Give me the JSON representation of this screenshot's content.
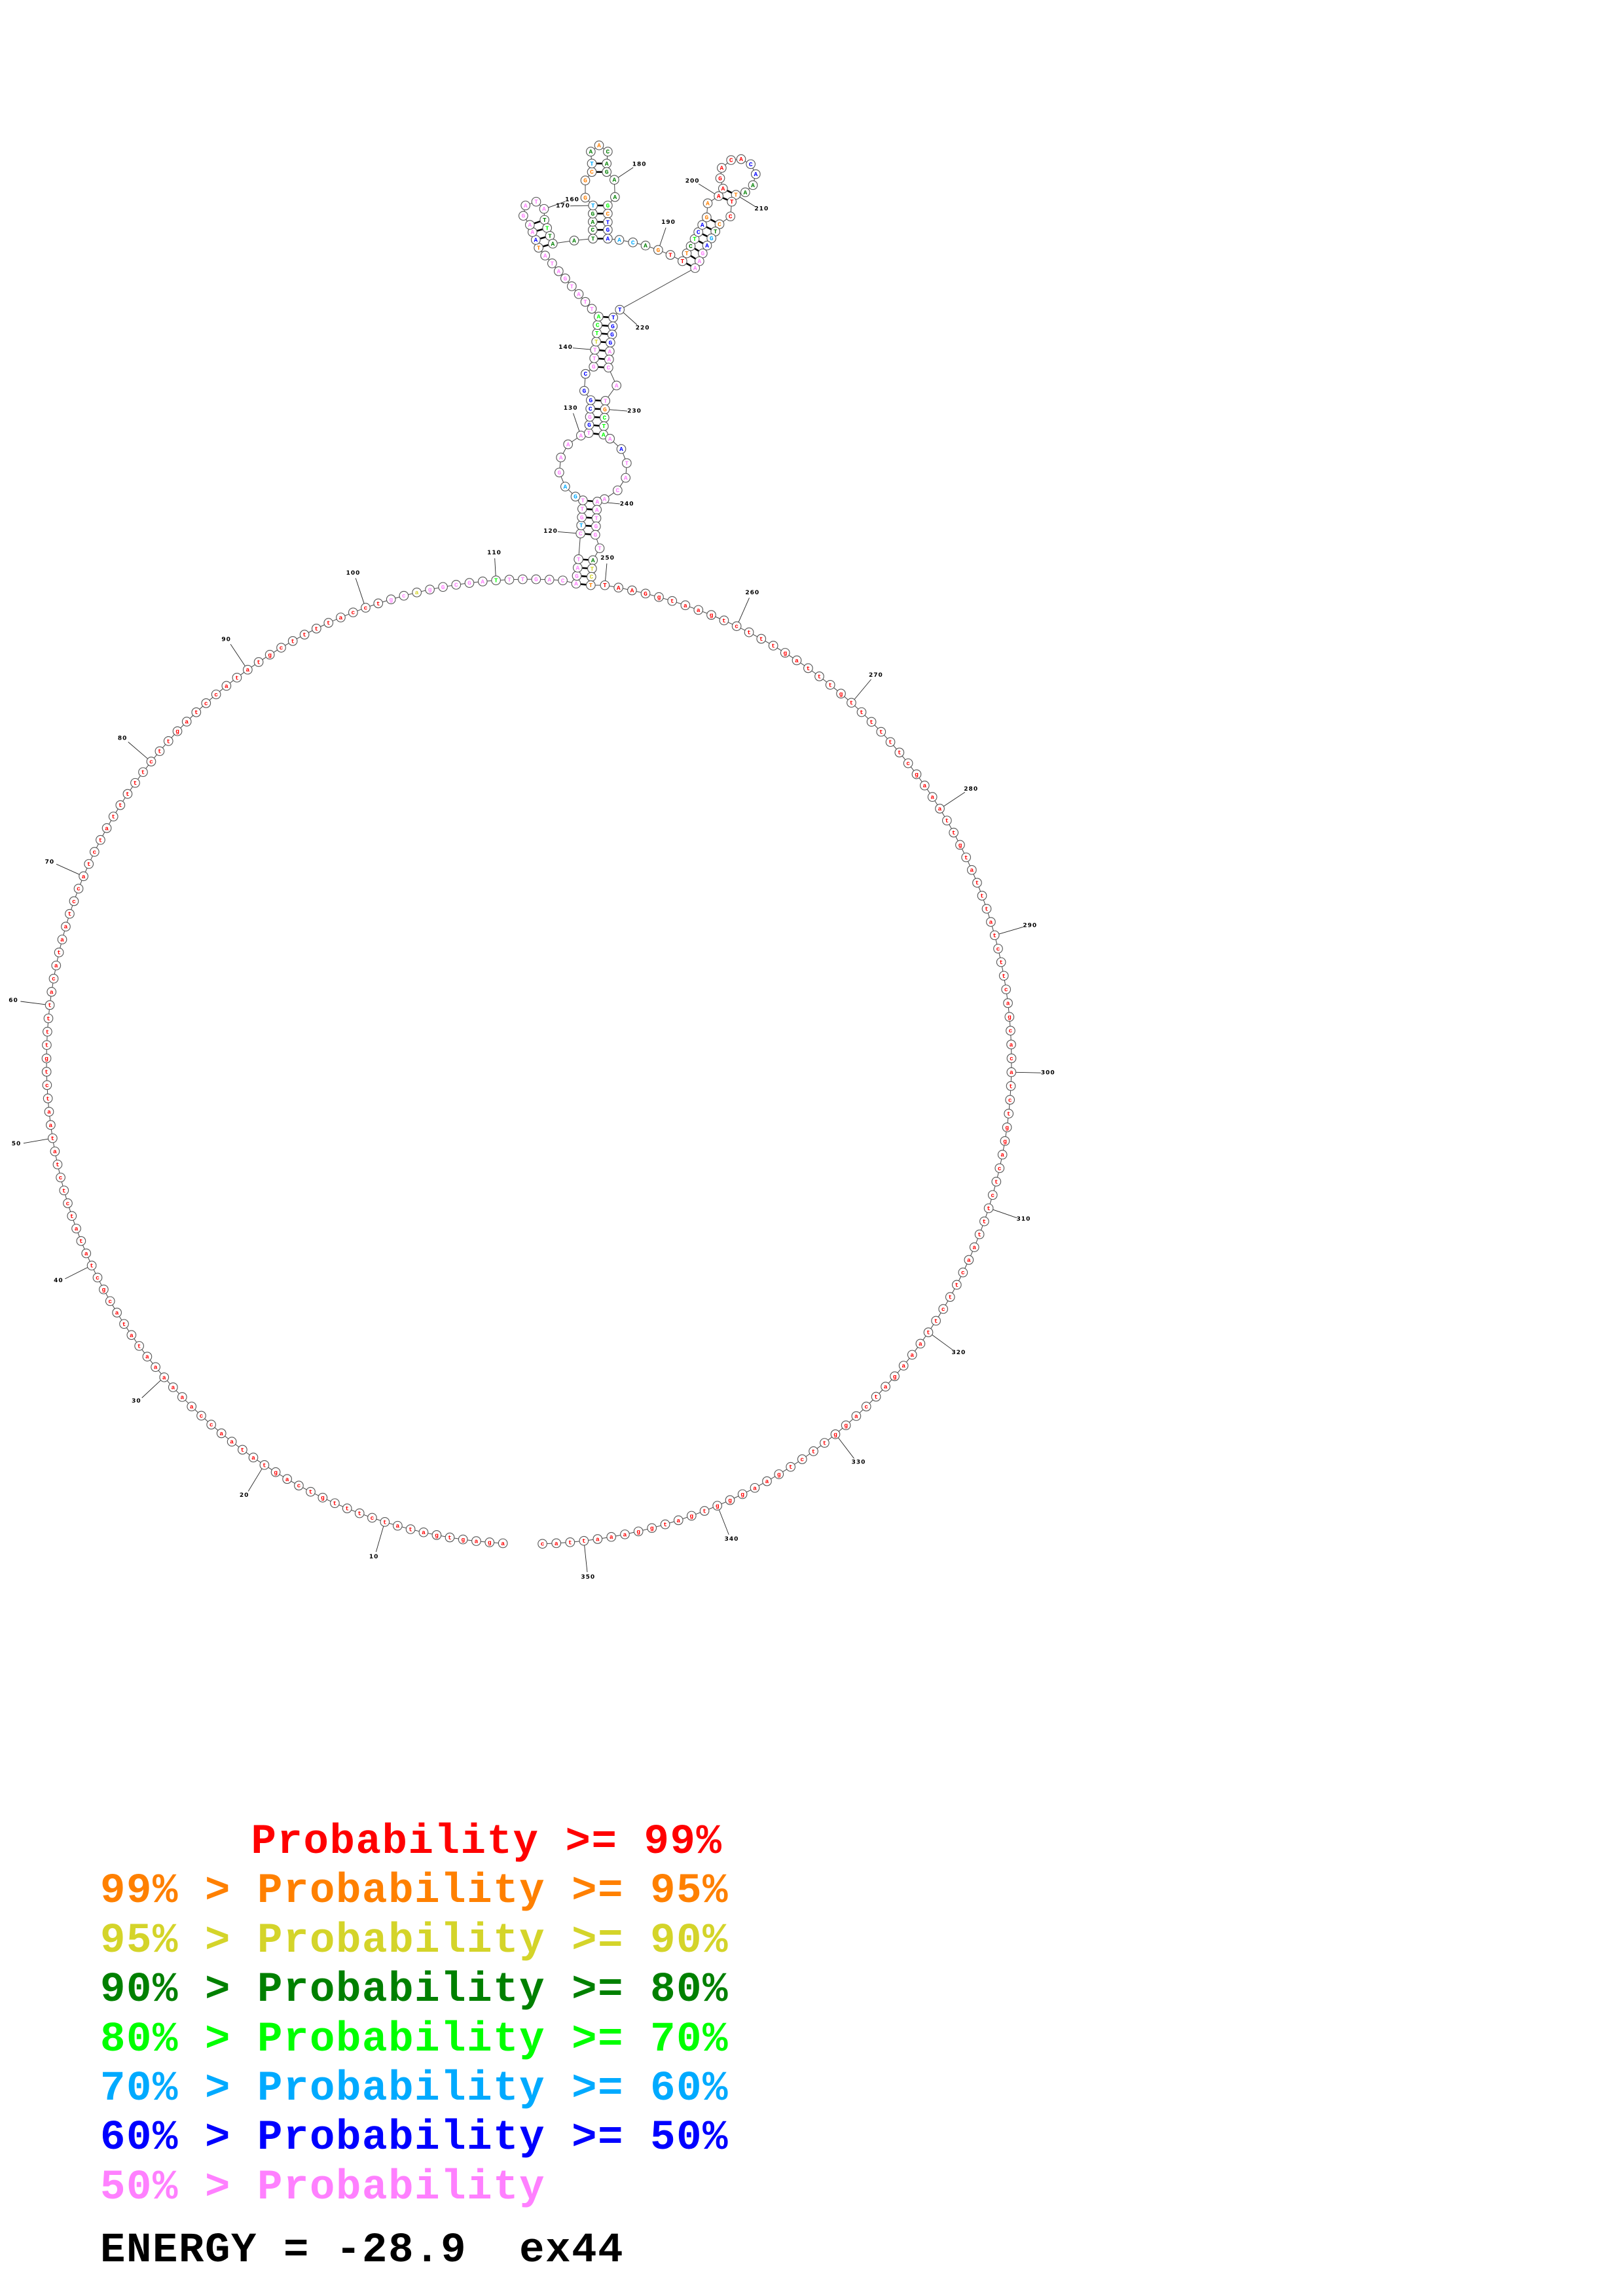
{
  "structure": {
    "sequence": "agagtgatatctttgtcagtataaccaaaaaatatacgctatatctctataatctgttttacataatccatctatttttcttgatccatatgcttttacctgcagGCGATTTGACAGATCTGTTGAGAAATGGCGGCGTTTTCATTATGATATAAAGATATTTAATCAGTGGCTAACAGAAGCTGAACAGTTTCTCAGAAAGACACAAATTCCTGAGAATTGGGAACATGCTAAATACAAATGGTATCTTAAGgtaagtctttgatttgttttttcgaaattgtatttatcttcagcacatctggactctttaacttcttaaagatcaggttctgaagggtgatggaaattac",
    "probability_class": "RRRRRRRRRRRRRRRRRRRRRRRRRRRRRRRRRRRRRRRRRRRRRRRRRRRRRRRRRRRRRRRRRRRRRRRRRRRRRRRRRRRRRRRRRRRRRRRRRRRRRPPYPPPPPGPPPPPPPPPPLPPPLLPPPPPBPBBBBPPPYGGGPPPPPPPPOBPPPPPPDGDDDDDDDLOOOLDODDDDDGOBBBLLDORRODGBBOORRRRRRBBDDORRODLBPPPBBBBBPPPPPOGGGPBPPPPPPPPPPDYYORRRRRRRRRRRRRRRRRRRRRRRRRRRRRRRRRRRRRRRRRRRRRRRRRRRRRRRRRRRRRRRRRRRRRRRRRRRRRRRRRRRRRRRRRRRRRRRRRRRR",
    "class_colors": {
      "R": "#ff0000",
      "O": "#ff8000",
      "Y": "#d4d42a",
      "D": "#008000",
      "G": "#00ff00",
      "L": "#00aaff",
      "B": "#0000ff",
      "P": "#ff80ff"
    },
    "base_pairs": [
      [
        116,
        249
      ],
      [
        117,
        248
      ],
      [
        118,
        247
      ],
      [
        119,
        246
      ],
      [
        120,
        244
      ],
      [
        121,
        243
      ],
      [
        122,
        242
      ],
      [
        123,
        241
      ],
      [
        124,
        240
      ],
      [
        131,
        233
      ],
      [
        132,
        232
      ],
      [
        133,
        231
      ],
      [
        134,
        230
      ],
      [
        135,
        229
      ],
      [
        138,
        227
      ],
      [
        139,
        226
      ],
      [
        140,
        225
      ],
      [
        141,
        224
      ],
      [
        142,
        223
      ],
      [
        143,
        222
      ],
      [
        144,
        221
      ],
      [
        153,
        164
      ],
      [
        154,
        163
      ],
      [
        155,
        162
      ],
      [
        156,
        161
      ],
      [
        166,
        186
      ],
      [
        167,
        185
      ],
      [
        168,
        184
      ],
      [
        169,
        183
      ],
      [
        170,
        182
      ],
      [
        173,
        179
      ],
      [
        174,
        178
      ],
      [
        192,
        219
      ],
      [
        193,
        218
      ],
      [
        194,
        217
      ],
      [
        195,
        216
      ],
      [
        196,
        215
      ],
      [
        197,
        214
      ],
      [
        198,
        213
      ],
      [
        200,
        211
      ],
      [
        201,
        210
      ]
    ],
    "position_labels": [
      "10",
      "20",
      "30",
      "40",
      "50",
      "60",
      "70",
      "80",
      "90",
      "100",
      "110",
      "120",
      "130",
      "140",
      "160",
      "170",
      "180",
      "190",
      "200",
      "210",
      "220",
      "230",
      "240",
      "250",
      "260",
      "270",
      "280",
      "290",
      "300",
      "310",
      "320",
      "330",
      "340",
      "350"
    ]
  },
  "legend": [
    {
      "text": "Probability >= 99%",
      "color": "#ff0000",
      "indent": true
    },
    {
      "text": "99% > Probability >= 95%",
      "color": "#ff8000"
    },
    {
      "text": "95% > Probability >= 90%",
      "color": "#d4d42a"
    },
    {
      "text": "90% > Probability >= 80%",
      "color": "#008000"
    },
    {
      "text": "80% > Probability >= 70%",
      "color": "#00ff00"
    },
    {
      "text": "70% > Probability >= 60%",
      "color": "#00aaff"
    },
    {
      "text": "60% > Probability >= 50%",
      "color": "#0000ff"
    },
    {
      "text": "50% > Probability",
      "color": "#ff80ff"
    }
  ],
  "footer": {
    "energy": "ENERGY = -28.9",
    "name": "ex44"
  }
}
